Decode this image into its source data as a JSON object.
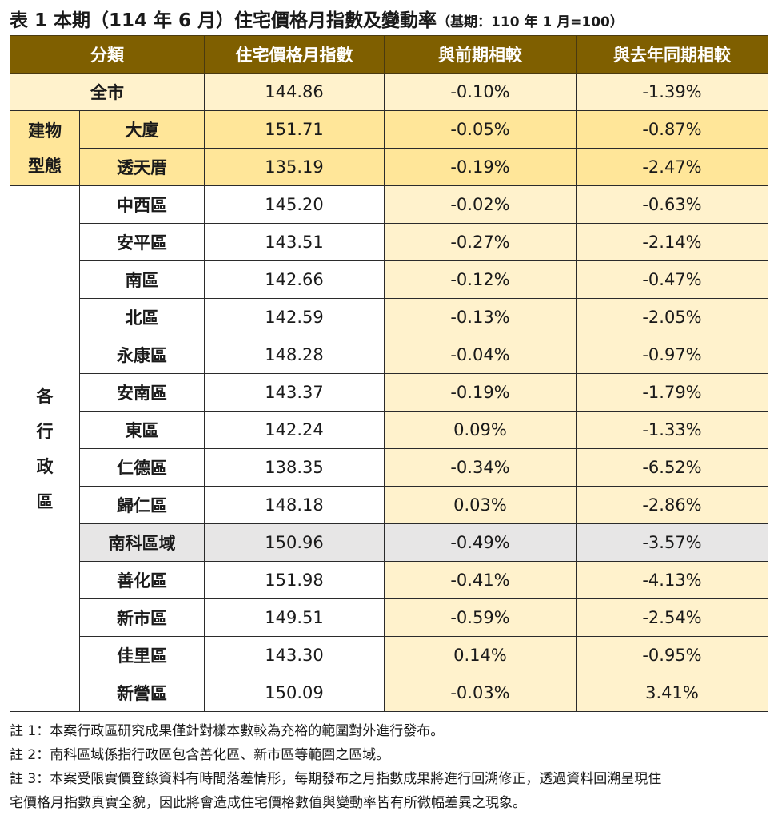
{
  "title": {
    "main": "表 1 本期（114 年 6 月）住宅價格月指數及變動率",
    "sub": "（基期：110 年 1 月=100）"
  },
  "headers": [
    "分類",
    "住宅價格月指數",
    "與前期相較",
    "與去年同期相較"
  ],
  "summary": {
    "label": "全市",
    "index": "144.86",
    "mom": "-0.10%",
    "yoy": "-1.39%"
  },
  "building_type": {
    "group_label": [
      "建物",
      "型態"
    ],
    "rows": [
      {
        "label": "大廈",
        "index": "151.71",
        "mom": "-0.05%",
        "yoy": "-0.87%"
      },
      {
        "label": "透天厝",
        "index": "135.19",
        "mom": "-0.19%",
        "yoy": "-2.47%"
      }
    ]
  },
  "districts": {
    "group_label": [
      "各",
      "行",
      "政",
      "區"
    ],
    "rows": [
      {
        "label": "中西區",
        "index": "145.20",
        "mom": "-0.02%",
        "yoy": "-0.63%"
      },
      {
        "label": "安平區",
        "index": "143.51",
        "mom": "-0.27%",
        "yoy": "-2.14%"
      },
      {
        "label": "南區",
        "index": "142.66",
        "mom": "-0.12%",
        "yoy": "-0.47%"
      },
      {
        "label": "北區",
        "index": "142.59",
        "mom": "-0.13%",
        "yoy": "-2.05%"
      },
      {
        "label": "永康區",
        "index": "148.28",
        "mom": "-0.04%",
        "yoy": "-0.97%"
      },
      {
        "label": "安南區",
        "index": "143.37",
        "mom": "-0.19%",
        "yoy": "-1.79%"
      },
      {
        "label": "東區",
        "index": "142.24",
        "mom": "0.09%",
        "yoy": "-1.33%"
      },
      {
        "label": "仁德區",
        "index": "138.35",
        "mom": "-0.34%",
        "yoy": "-6.52%"
      },
      {
        "label": "歸仁區",
        "index": "148.18",
        "mom": "0.03%",
        "yoy": "-2.86%"
      },
      {
        "label": "南科區域",
        "index": "150.96",
        "mom": "-0.49%",
        "yoy": "-3.57%"
      },
      {
        "label": "善化區",
        "index": "151.98",
        "mom": "-0.41%",
        "yoy": "-4.13%"
      },
      {
        "label": "新市區",
        "index": "149.51",
        "mom": "-0.59%",
        "yoy": "-2.54%"
      },
      {
        "label": "佳里區",
        "index": "143.30",
        "mom": "0.14%",
        "yoy": "-0.95%"
      },
      {
        "label": "新營區",
        "index": "150.09",
        "mom": "-0.03%",
        "yoy": "3.41%"
      }
    ]
  },
  "notes": [
    "註 1：本案行政區研究成果僅針對樣本數較為充裕的範圍對外進行發布。",
    "註 2：南科區域係指行政區包含善化區、新市區等範圍之區域。",
    "註 3：本案受限實價登錄資料有時間落差情形，每期發布之月指數成果將進行回溯修正，透過資料回溯呈現住",
    "宅價格月指數真實全貌，因此將會造成住宅價格數值與變動率皆有所微幅差異之現象。"
  ],
  "colors": {
    "header_bg": "#7f5f00",
    "header_text": "#ffffff",
    "light_yellow": "#fff2cc",
    "medium_yellow": "#ffe699",
    "highlight_gray": "#e7e6e6"
  }
}
